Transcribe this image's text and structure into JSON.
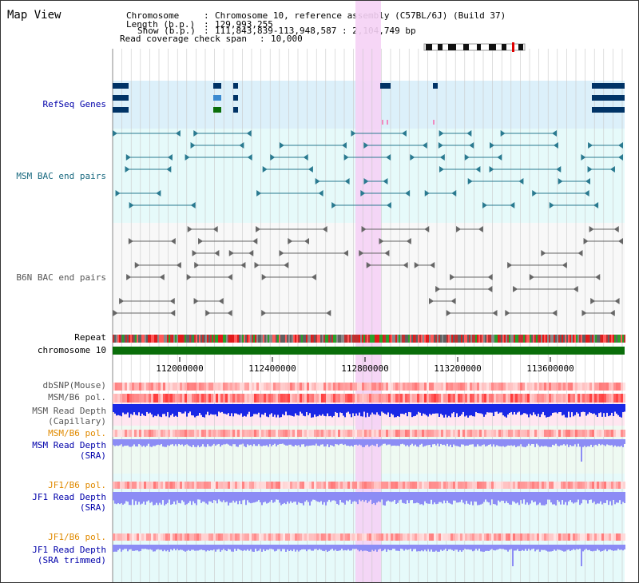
{
  "header": {
    "title": "Map View",
    "chromosome_label": "Chromosome",
    "chromosome_value": "Chromosome 10, reference assembly (C57BL/6J) (Build 37)",
    "length_label": "Length (b.p.)",
    "length_value": "129,993,255",
    "show_label": "Show (b.p.)",
    "show_value": "111,843,839-113,948,587 : 2,104,749 bp",
    "coverage_label": "Read coverage check span",
    "coverage_value": "10,000"
  },
  "tracks": {
    "refseq": "RefSeq Genes",
    "msm_bac": "MSM BAC end pairs",
    "b6n_bac": "B6N BAC end pairs",
    "repeat": "Repeat",
    "chromosome": "chromosome 10",
    "dbsnp": "dbSNP(Mouse)",
    "msm_b6_pol_1": "MSM/B6 pol.",
    "msm_depth_cap_1": "MSM Read Depth",
    "msm_depth_cap_2": "(Capillary)",
    "msm_b6_pol_2": "MSM/B6 pol.",
    "msm_depth_sra_1": "MSM Read Depth",
    "msm_depth_sra_2": "(SRA)",
    "jf1_b6_pol_1": "JF1/B6 pol.",
    "jf1_depth_sra_1": "JF1 Read Depth",
    "jf1_depth_sra_2": "(SRA)",
    "jf1_b6_pol_2": "JF1/B6 pol.",
    "jf1_depth_trim_1": "JF1 Read Depth",
    "jf1_depth_trim_2": "(SRA trimmed)"
  },
  "axis": {
    "ticks": [
      "112000000",
      "112400000",
      "112800000",
      "113200000",
      "113600000"
    ]
  },
  "colors": {
    "refseq_bg": "#dcf0fa",
    "bac_bg": "#e6fafa",
    "b6n_bg": "#f8f8f8",
    "highlight": "#f5d2f5",
    "chromosome": "#0a6e0a",
    "msm_depth": "#1a28e6",
    "sra_depth": "#8c8cf5",
    "pol_red": "#ff3232",
    "gene": "#003366",
    "bac_msm": "#2a7a90",
    "bac_b6n": "#666666"
  }
}
